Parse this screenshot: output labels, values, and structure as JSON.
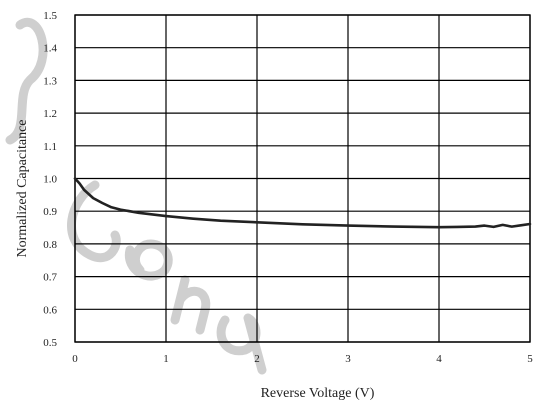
{
  "chart_data": {
    "type": "line",
    "title": "",
    "xlabel": "Reverse Voltage (V)",
    "ylabel": "Normalized Capacitance",
    "xlim": [
      0,
      5
    ],
    "ylim": [
      0.5,
      1.5
    ],
    "x_ticks": [
      "0",
      "1",
      "2",
      "3",
      "4",
      "5"
    ],
    "y_ticks": [
      "0.5",
      "0.6",
      "0.7",
      "0.8",
      "0.9",
      "1.0",
      "1.1",
      "1.2",
      "1.3",
      "1.4",
      "1.5"
    ],
    "grid": true,
    "legend": "none",
    "series": [
      {
        "color": "#222222",
        "x": [
          0,
          0.05,
          0.1,
          0.2,
          0.3,
          0.4,
          0.5,
          0.7,
          1.0,
          1.3,
          1.6,
          2.0,
          2.5,
          3.0,
          3.5,
          4.0,
          4.2,
          4.4,
          4.5,
          4.6,
          4.7,
          4.8,
          4.9,
          5.0
        ],
        "y": [
          1.0,
          0.985,
          0.965,
          0.94,
          0.925,
          0.912,
          0.905,
          0.895,
          0.885,
          0.877,
          0.871,
          0.866,
          0.86,
          0.856,
          0.853,
          0.851,
          0.852,
          0.853,
          0.856,
          0.852,
          0.858,
          0.853,
          0.857,
          0.861
        ]
      }
    ]
  },
  "watermark": {
    "color": "#cfcfcf"
  }
}
